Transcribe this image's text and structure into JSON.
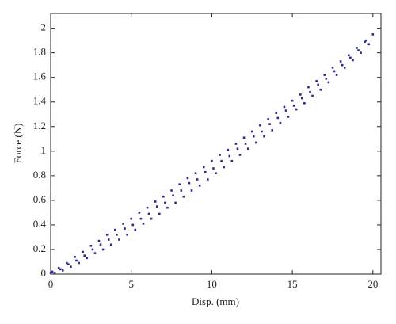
{
  "chart_data": {
    "type": "scatter",
    "x_label": "Disp. (mm)",
    "y_label": "Force (N)",
    "xlim": [
      0,
      20.5
    ],
    "ylim": [
      0,
      2.12
    ],
    "xticks": [
      0,
      5,
      10,
      15,
      20
    ],
    "yticks": [
      0,
      0.2,
      0.4,
      0.6,
      0.8,
      1,
      1.2,
      1.4,
      1.6,
      1.8,
      2
    ],
    "grid": false,
    "series": [
      {
        "name": "Force",
        "color": "#2a2a8c",
        "x": [
          0,
          0.5,
          1,
          1.5,
          2,
          2.5,
          3,
          3.5,
          4,
          4.5,
          5,
          5.5,
          6,
          6.5,
          7,
          7.5,
          8,
          8.5,
          9,
          9.5,
          10,
          10.5,
          11,
          11.5,
          12,
          12.5,
          13,
          13.5,
          14,
          14.5,
          15,
          15.5,
          16,
          16.5,
          17,
          17.5,
          18,
          18.5,
          19,
          19.5,
          20,
          0.25,
          0.75,
          1.25,
          1.75,
          2.25,
          2.75,
          3.25,
          3.75,
          4.25,
          4.75,
          5.25,
          5.75,
          6.25,
          6.75,
          7.25,
          7.75,
          8.25,
          8.75,
          9.25,
          9.75,
          10.25,
          10.75,
          11.25,
          11.75,
          12.25,
          12.75,
          13.25,
          13.75,
          14.25,
          14.75,
          15.25,
          15.75,
          16.25,
          16.75,
          17.25,
          17.75,
          18.25,
          18.75,
          19.25,
          19.75,
          0.1,
          0.6,
          1.1,
          1.6,
          2.1,
          2.6,
          3.1,
          3.6,
          4.1,
          4.6,
          5.1,
          5.6,
          6.1,
          6.6,
          7.1,
          7.6,
          8.1,
          8.6,
          9.1,
          9.6,
          10.1,
          10.6,
          11.1,
          11.6,
          12.1,
          12.6,
          13.1,
          13.6,
          14.1,
          14.6,
          15.1,
          15.6,
          16.1,
          16.6,
          17.1,
          17.6,
          18.1,
          18.6,
          19.1,
          19.6
        ],
        "values": [
          0.01,
          0.05,
          0.09,
          0.14,
          0.18,
          0.23,
          0.27,
          0.32,
          0.36,
          0.41,
          0.45,
          0.5,
          0.54,
          0.59,
          0.63,
          0.68,
          0.73,
          0.78,
          0.82,
          0.87,
          0.92,
          0.97,
          1.01,
          1.06,
          1.11,
          1.16,
          1.21,
          1.26,
          1.31,
          1.36,
          1.41,
          1.46,
          1.52,
          1.57,
          1.62,
          1.68,
          1.73,
          1.78,
          1.84,
          1.89,
          1.95,
          0.01,
          0.03,
          0.06,
          0.09,
          0.13,
          0.17,
          0.2,
          0.24,
          0.28,
          0.32,
          0.36,
          0.41,
          0.45,
          0.49,
          0.54,
          0.58,
          0.63,
          0.68,
          0.72,
          0.77,
          0.82,
          0.87,
          0.92,
          0.97,
          1.02,
          1.07,
          1.12,
          1.17,
          1.23,
          1.28,
          1.34,
          1.39,
          1.45,
          1.5,
          1.56,
          1.62,
          1.68,
          1.74,
          1.8,
          1.87,
          0.02,
          0.04,
          0.08,
          0.11,
          0.15,
          0.2,
          0.24,
          0.28,
          0.32,
          0.37,
          0.4,
          0.45,
          0.49,
          0.55,
          0.58,
          0.64,
          0.68,
          0.74,
          0.77,
          0.83,
          0.86,
          0.92,
          0.96,
          1.02,
          1.06,
          1.12,
          1.16,
          1.22,
          1.27,
          1.33,
          1.37,
          1.43,
          1.48,
          1.54,
          1.59,
          1.65,
          1.7,
          1.76,
          1.82,
          1.9
        ]
      }
    ]
  }
}
